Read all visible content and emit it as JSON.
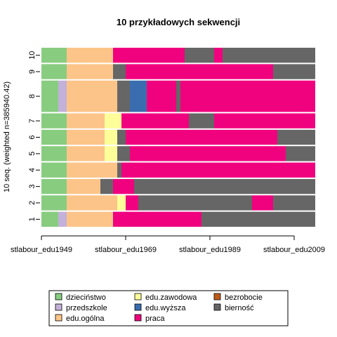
{
  "chart_data": {
    "type": "sequence-index-plot",
    "title": "10 przykładowych sekwencji",
    "ylabel": "10 seq. (weighted n=385940.42)",
    "xlabel": "",
    "x_tick_labels": [
      "stlabour_edu1949",
      "stlabour_edu1969",
      "stlabour_edu1989",
      "stlabour_edu2009"
    ],
    "x_start": 1949,
    "x_end": 2014,
    "x_ticks": [
      1949,
      1969,
      1989,
      2009
    ],
    "states": [
      {
        "code": "D",
        "label": "dzieciństwo",
        "color": "#88cc80"
      },
      {
        "code": "P",
        "label": "przedszkole",
        "color": "#c3b1d9"
      },
      {
        "code": "O",
        "label": "edu.ogólna",
        "color": "#fcc488"
      },
      {
        "code": "Z",
        "label": "edu.zawodowa",
        "color": "#fdfd99"
      },
      {
        "code": "W",
        "label": "edu.wyższa",
        "color": "#3a6db0"
      },
      {
        "code": "R",
        "label": "praca",
        "color": "#f0027f"
      },
      {
        "code": "B",
        "label": "bezrobocie",
        "color": "#bf5a18"
      },
      {
        "code": "N",
        "label": "bierność",
        "color": "#666666"
      }
    ],
    "sequences": [
      {
        "label": "1",
        "weight": 1,
        "spells": [
          [
            "D",
            1949,
            1953
          ],
          [
            "P",
            1953,
            1955
          ],
          [
            "O",
            1955,
            1966
          ],
          [
            "R",
            1966,
            1987
          ],
          [
            "N",
            1987,
            2014
          ]
        ]
      },
      {
        "label": "2",
        "weight": 1,
        "spells": [
          [
            "D",
            1949,
            1955
          ],
          [
            "O",
            1955,
            1967
          ],
          [
            "Z",
            1967,
            1969
          ],
          [
            "R",
            1969,
            1972
          ],
          [
            "N",
            1972,
            1999
          ],
          [
            "R",
            1999,
            2004
          ],
          [
            "N",
            2004,
            2014
          ]
        ]
      },
      {
        "label": "3",
        "weight": 1,
        "spells": [
          [
            "D",
            1949,
            1955
          ],
          [
            "O",
            1955,
            1963
          ],
          [
            "N",
            1963,
            1966
          ],
          [
            "R",
            1966,
            1971
          ],
          [
            "N",
            1971,
            2014
          ]
        ]
      },
      {
        "label": "4",
        "weight": 1,
        "spells": [
          [
            "D",
            1949,
            1955
          ],
          [
            "O",
            1955,
            1967
          ],
          [
            "N",
            1967,
            1968
          ],
          [
            "R",
            1968,
            2014
          ]
        ]
      },
      {
        "label": "5",
        "weight": 1,
        "spells": [
          [
            "D",
            1949,
            1955
          ],
          [
            "O",
            1955,
            1964
          ],
          [
            "Z",
            1964,
            1967
          ],
          [
            "N",
            1967,
            1970
          ],
          [
            "R",
            1970,
            2007
          ],
          [
            "N",
            2007,
            2014
          ]
        ]
      },
      {
        "label": "6",
        "weight": 1,
        "spells": [
          [
            "D",
            1949,
            1955
          ],
          [
            "O",
            1955,
            1964
          ],
          [
            "Z",
            1964,
            1967
          ],
          [
            "N",
            1967,
            1969
          ],
          [
            "R",
            1969,
            2005
          ],
          [
            "N",
            2005,
            2014
          ]
        ]
      },
      {
        "label": "7",
        "weight": 1,
        "spells": [
          [
            "D",
            1949,
            1955
          ],
          [
            "O",
            1955,
            1964
          ],
          [
            "Z",
            1964,
            1968
          ],
          [
            "R",
            1968,
            1984
          ],
          [
            "N",
            1984,
            1990
          ],
          [
            "R",
            1990,
            2014
          ]
        ]
      },
      {
        "label": "8",
        "weight": 2,
        "spells": [
          [
            "D",
            1949,
            1953
          ],
          [
            "P",
            1953,
            1955
          ],
          [
            "O",
            1955,
            1967
          ],
          [
            "N",
            1967,
            1970
          ],
          [
            "W",
            1970,
            1974
          ],
          [
            "R",
            1974,
            1981
          ],
          [
            "N",
            1981,
            1982
          ],
          [
            "R",
            1982,
            2014
          ]
        ]
      },
      {
        "label": "9",
        "weight": 1,
        "spells": [
          [
            "D",
            1949,
            1955
          ],
          [
            "O",
            1955,
            1966
          ],
          [
            "N",
            1966,
            1969
          ],
          [
            "R",
            1969,
            2004
          ],
          [
            "N",
            2004,
            2014
          ]
        ]
      },
      {
        "label": "10",
        "weight": 1,
        "spells": [
          [
            "D",
            1949,
            1955
          ],
          [
            "O",
            1955,
            1966
          ],
          [
            "R",
            1966,
            1983
          ],
          [
            "N",
            1983,
            1990
          ],
          [
            "R",
            1990,
            1992
          ],
          [
            "N",
            1992,
            2014
          ]
        ]
      }
    ],
    "legend_position": "bottom"
  }
}
